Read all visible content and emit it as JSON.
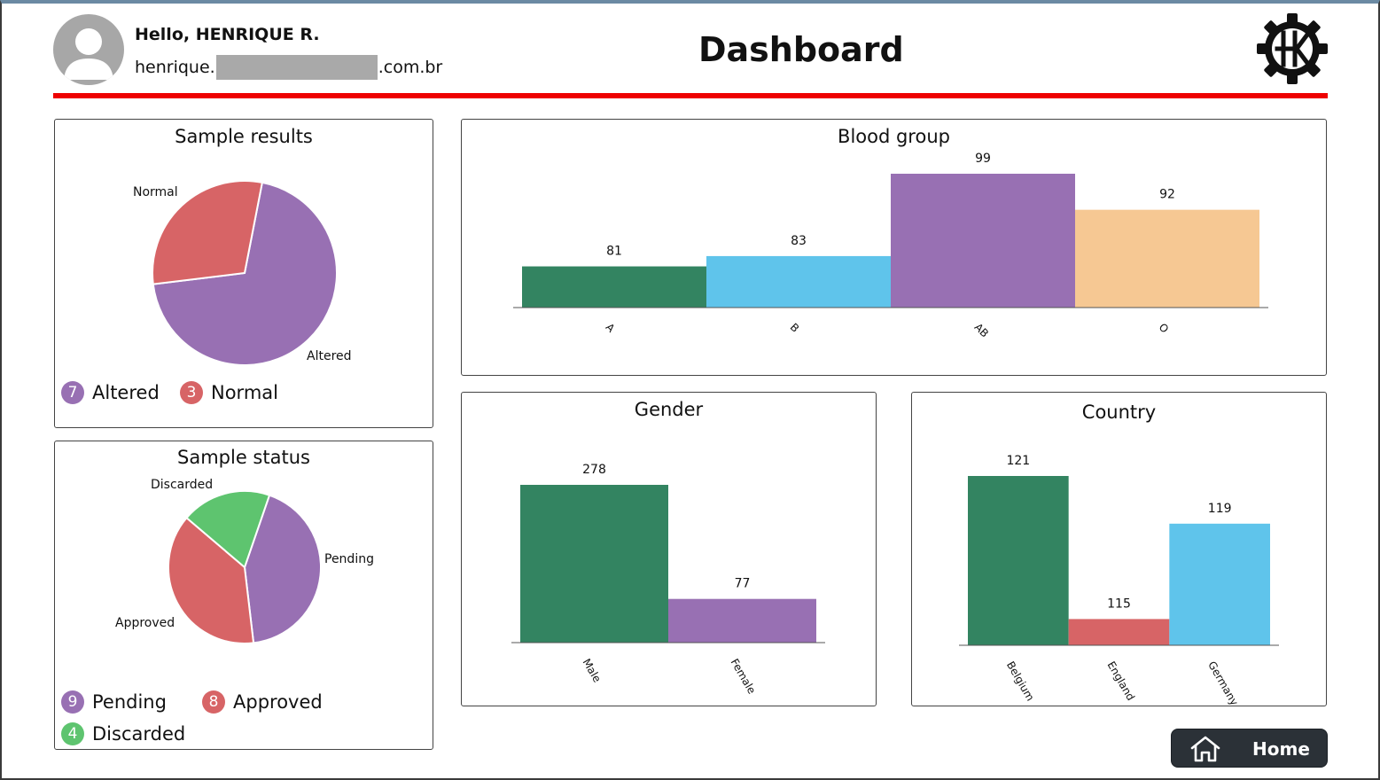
{
  "header": {
    "greeting": "Hello, HENRIQUE R.",
    "email_prefix": "henrique.",
    "email_suffix": ".com.br",
    "title": "Dashboard"
  },
  "colors": {
    "divider": "#ee0000",
    "purple": "#9870b3",
    "red": "#d76466",
    "green": "#5ec46f",
    "dark_green": "#338461",
    "light_blue": "#5fc4eb",
    "peach": "#f6c893",
    "home_button": "#2b3137"
  },
  "sample_results": {
    "title": "Sample results",
    "chart_data": {
      "type": "pie",
      "slices": [
        {
          "label": "Altered",
          "value": 7,
          "color": "#9870b3"
        },
        {
          "label": "Normal",
          "value": 3,
          "color": "#d76466"
        }
      ]
    },
    "legend": [
      {
        "count": "7",
        "label": "Altered",
        "color": "#9870b3"
      },
      {
        "count": "3",
        "label": "Normal",
        "color": "#d76466"
      }
    ]
  },
  "sample_status": {
    "title": "Sample status",
    "chart_data": {
      "type": "pie",
      "slices": [
        {
          "label": "Pending",
          "value": 9,
          "color": "#9870b3"
        },
        {
          "label": "Approved",
          "value": 8,
          "color": "#d76466"
        },
        {
          "label": "Discarded",
          "value": 4,
          "color": "#5ec46f"
        }
      ]
    },
    "legend": [
      {
        "count": "9",
        "label": "Pending",
        "color": "#9870b3"
      },
      {
        "count": "8",
        "label": "Approved",
        "color": "#d76466"
      },
      {
        "count": "4",
        "label": "Discarded",
        "color": "#5ec46f"
      }
    ]
  },
  "blood_group": {
    "title": "Blood group",
    "chart_data": {
      "type": "bar",
      "categories": [
        "A",
        "B",
        "AB",
        "O"
      ],
      "values": [
        81,
        83,
        99,
        92
      ],
      "colors": [
        "#338461",
        "#5fc4eb",
        "#9870b3",
        "#f6c893"
      ],
      "ylim": [
        73,
        99
      ]
    }
  },
  "gender": {
    "title": "Gender",
    "chart_data": {
      "type": "bar",
      "categories": [
        "Male",
        "Female"
      ],
      "values": [
        278,
        77
      ],
      "colors": [
        "#338461",
        "#9870b3"
      ],
      "ylim": [
        0,
        278
      ]
    }
  },
  "country": {
    "title": "Country",
    "chart_data": {
      "type": "bar",
      "categories": [
        "Belgium",
        "England",
        "Germany"
      ],
      "values": [
        121,
        115,
        119
      ],
      "colors": [
        "#338461",
        "#d76466",
        "#5fc4eb"
      ],
      "ylim": [
        113.9,
        121
      ]
    }
  },
  "home_button": {
    "label": "Home",
    "icon": "home-icon"
  }
}
